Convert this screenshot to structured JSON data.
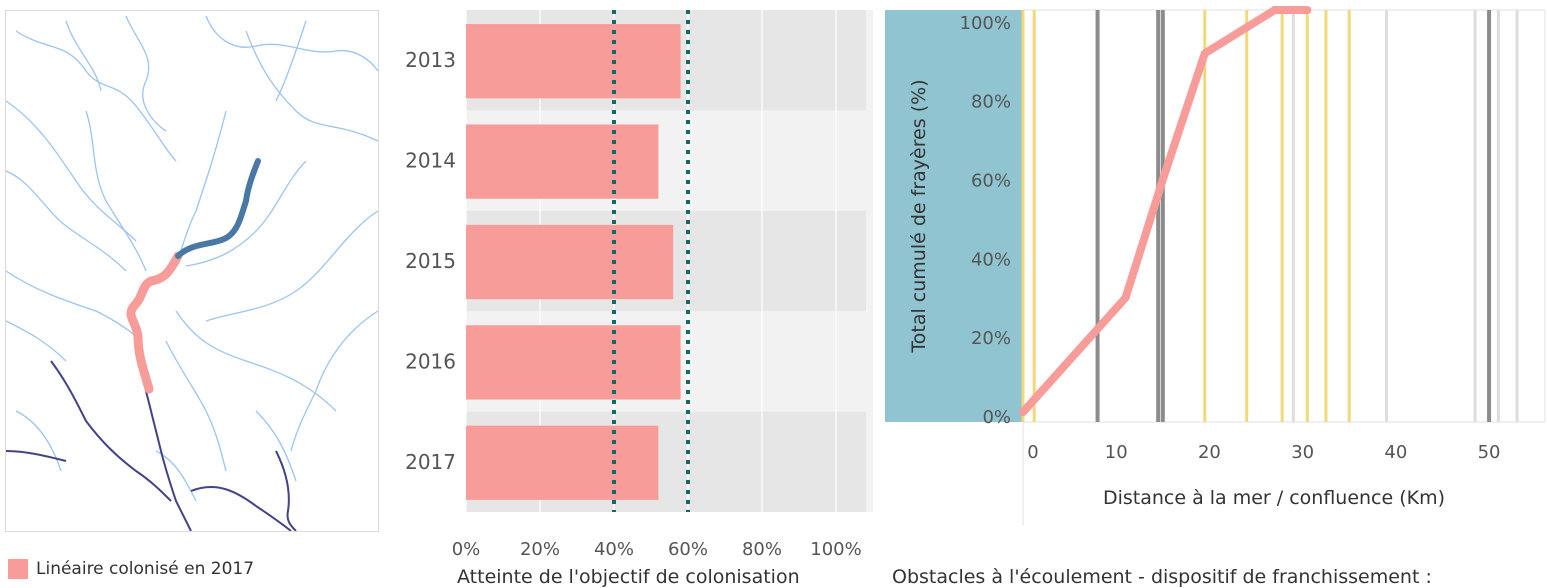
{
  "legend": {
    "label": "Linéaire colonisé en 2017",
    "color": "#f89c9a"
  },
  "colors": {
    "bar": "#f89c9a",
    "target_line": "#0f6a6c",
    "line": "#f89c9a",
    "obstacle_dark": "#8c8c8c",
    "obstacle_yellow": "#f2d879",
    "obstacle_light": "#dddddd",
    "yaxis_panel": "#8fc4d0",
    "river_light": "#9cc4f0",
    "river_dark": "#43438a",
    "river_colonized": "#f89c9a",
    "river_upstream": "#4a78a4"
  },
  "bar_footer": "Atteinte de l'objectif de colonisation",
  "line_footer": "Obstacles à l'écoulement - dispositif de franchissement :",
  "chart_data": [
    {
      "type": "bar",
      "orientation": "horizontal",
      "categories": [
        "2013",
        "2014",
        "2015",
        "2016",
        "2017"
      ],
      "values": [
        58,
        52,
        56,
        58,
        52
      ],
      "target_lines": [
        40,
        60
      ],
      "xlim": [
        0,
        110
      ],
      "xticks": [
        "0%",
        "20%",
        "40%",
        "60%",
        "80%",
        "100%"
      ],
      "xtick_values": [
        0,
        20,
        40,
        60,
        80,
        100
      ],
      "xlabel": "Atteinte de l'objectif de colonisation"
    },
    {
      "type": "line",
      "x": [
        0,
        11,
        15,
        19.5,
        27,
        30.5
      ],
      "y": [
        1,
        30,
        60,
        92,
        103,
        103
      ],
      "xlim": [
        0,
        56
      ],
      "ylim": [
        0,
        103
      ],
      "xticks": [
        0,
        10,
        20,
        30,
        40,
        50
      ],
      "yticks": [
        "0%",
        "20%",
        "40%",
        "60%",
        "80%",
        "100%"
      ],
      "ytick_values": [
        0,
        20,
        40,
        60,
        80,
        100
      ],
      "xlabel": "Distance à la mer / confluence (Km)",
      "ylabel": "Total cumulé de frayères (%)",
      "obstacles_dark": [
        8,
        14.5,
        15,
        50
      ],
      "obstacles_yellow": [
        0,
        1.2,
        19.5,
        24,
        27.8,
        30.5,
        32.5,
        35
      ],
      "obstacles_light": [
        29,
        39,
        48.5,
        51,
        53
      ]
    }
  ]
}
